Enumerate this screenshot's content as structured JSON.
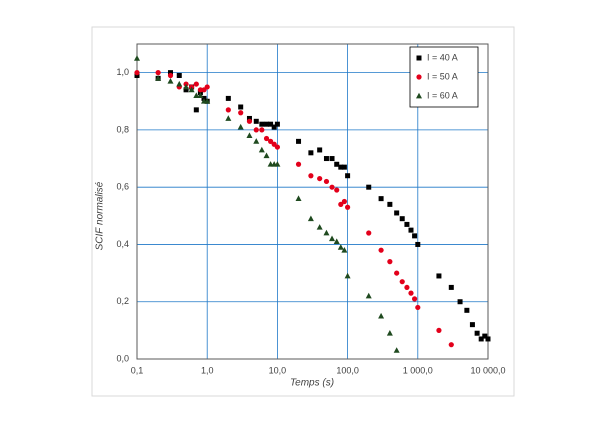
{
  "chart_data": {
    "type": "scatter",
    "x_label": "Temps (s)",
    "y_label": "SCIF normalisé",
    "xscale": "log",
    "grid": true,
    "legend": "upper right",
    "xlim": [
      0.1,
      10000
    ],
    "xticks": [
      {
        "value": 0.1,
        "label": "0,1"
      },
      {
        "value": 1,
        "label": "1,0"
      },
      {
        "value": 10,
        "label": "10,0"
      },
      {
        "value": 100,
        "label": "100,0"
      },
      {
        "value": 1000,
        "label": "1 000,0"
      },
      {
        "value": 10000,
        "label": "10 000,0"
      }
    ],
    "ylim": [
      0,
      1.1
    ],
    "yticks": [
      {
        "value": 0,
        "label": "0,0"
      },
      {
        "value": 0.2,
        "label": "0,2"
      },
      {
        "value": 0.4,
        "label": "0,4"
      },
      {
        "value": 0.6,
        "label": "0,6"
      },
      {
        "value": 0.8,
        "label": "0,8"
      },
      {
        "value": 1,
        "label": "1,0"
      }
    ],
    "series": [
      {
        "name": "I = 40 A",
        "color": "#000000",
        "marker": "square",
        "x": [
          0.1,
          0.2,
          0.3,
          0.4,
          0.5,
          0.6,
          0.7,
          0.8,
          0.9,
          1,
          2,
          3,
          4,
          5,
          6,
          7,
          8,
          9,
          10,
          20,
          30,
          40,
          50,
          60,
          70,
          80,
          90,
          100,
          200,
          300,
          400,
          500,
          600,
          700,
          800,
          900,
          1000,
          2000,
          3000,
          4000,
          5000,
          6000,
          7000,
          8000,
          9000,
          10000
        ],
        "values": [
          0.99,
          0.98,
          1.0,
          0.99,
          0.94,
          0.95,
          0.87,
          0.93,
          0.91,
          0.9,
          0.91,
          0.88,
          0.84,
          0.83,
          0.82,
          0.82,
          0.82,
          0.81,
          0.82,
          0.76,
          0.72,
          0.73,
          0.7,
          0.7,
          0.68,
          0.67,
          0.67,
          0.64,
          0.6,
          0.56,
          0.54,
          0.51,
          0.49,
          0.47,
          0.45,
          0.43,
          0.4,
          0.29,
          0.25,
          0.2,
          0.17,
          0.12,
          0.09,
          0.07,
          0.08,
          0.07
        ]
      },
      {
        "name": "I = 50 A",
        "color": "#e3001b",
        "marker": "circle",
        "x": [
          0.1,
          0.2,
          0.3,
          0.4,
          0.5,
          0.6,
          0.7,
          0.8,
          0.9,
          1,
          2,
          3,
          4,
          5,
          6,
          7,
          8,
          9,
          10,
          20,
          30,
          40,
          50,
          60,
          70,
          80,
          90,
          100,
          200,
          300,
          400,
          500,
          600,
          700,
          800,
          900,
          1000,
          2000,
          3000
        ],
        "values": [
          1.0,
          1.0,
          0.99,
          0.95,
          0.96,
          0.95,
          0.96,
          0.94,
          0.94,
          0.95,
          0.87,
          0.86,
          0.83,
          0.8,
          0.8,
          0.77,
          0.76,
          0.75,
          0.74,
          0.68,
          0.64,
          0.63,
          0.62,
          0.6,
          0.59,
          0.54,
          0.55,
          0.53,
          0.44,
          0.38,
          0.34,
          0.3,
          0.27,
          0.25,
          0.23,
          0.21,
          0.18,
          0.1,
          0.05
        ]
      },
      {
        "name": "I = 60 A",
        "color": "#1f4a1f",
        "marker": "triangle",
        "x": [
          0.1,
          0.2,
          0.3,
          0.4,
          0.5,
          0.6,
          0.7,
          0.8,
          0.9,
          1,
          2,
          3,
          4,
          5,
          6,
          7,
          8,
          9,
          10,
          20,
          30,
          40,
          50,
          60,
          70,
          80,
          90,
          100,
          200,
          300,
          400,
          500
        ],
        "values": [
          1.05,
          0.98,
          0.97,
          0.96,
          0.95,
          0.94,
          0.92,
          0.92,
          0.9,
          0.9,
          0.84,
          0.81,
          0.78,
          0.76,
          0.73,
          0.71,
          0.68,
          0.68,
          0.68,
          0.56,
          0.49,
          0.46,
          0.44,
          0.42,
          0.41,
          0.39,
          0.38,
          0.29,
          0.22,
          0.15,
          0.09,
          0.03
        ]
      }
    ]
  }
}
